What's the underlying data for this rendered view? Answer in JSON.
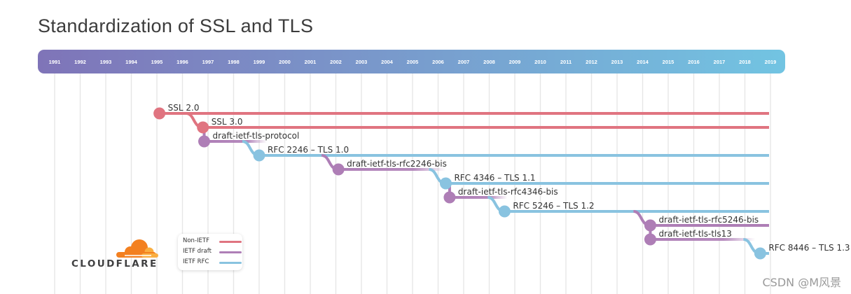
{
  "chart_data": {
    "type": "timeline",
    "title": "Standardization of SSL and TLS",
    "years": [
      1991,
      1992,
      1993,
      1994,
      1995,
      1996,
      1997,
      1998,
      1999,
      2000,
      2001,
      2002,
      2003,
      2004,
      2005,
      2006,
      2007,
      2008,
      2009,
      2010,
      2011,
      2012,
      2013,
      2014,
      2015,
      2016,
      2017,
      2018,
      2019
    ],
    "events": [
      {
        "label": "SSL 2.0",
        "category": "Non-IETF",
        "start": 1995.1,
        "persists": true
      },
      {
        "label": "SSL 3.0",
        "category": "Non-IETF",
        "start": 1996.8,
        "persists": true
      },
      {
        "label": "draft-ietf-tls-protocol",
        "category": "IETF draft",
        "start": 1996.85,
        "persists": false,
        "end": 1999.3
      },
      {
        "label": "RFC 2246 – TLS 1.0",
        "category": "IETF RFC",
        "start": 1999.0,
        "persists": true
      },
      {
        "label": "draft-ietf-tls-rfc2246-bis",
        "category": "IETF draft",
        "start": 2002.1,
        "persists": false,
        "end": 2006.3
      },
      {
        "label": "RFC 4346 – TLS 1.1",
        "category": "IETF RFC",
        "start": 2006.3,
        "persists": true
      },
      {
        "label": "draft-ietf-tls-rfc4346-bis",
        "category": "IETF draft",
        "start": 2006.45,
        "persists": false,
        "end": 2008.7
      },
      {
        "label": "RFC 5246 – TLS 1.2",
        "category": "IETF RFC",
        "start": 2008.6,
        "persists": true
      },
      {
        "label": "draft-ietf-tls-rfc5246-bis",
        "category": "IETF draft",
        "start": 2014.3,
        "persists": true
      },
      {
        "label": "draft-ietf-tls-tls13",
        "category": "IETF draft",
        "start": 2014.3,
        "persists": false,
        "end": 2018.4
      },
      {
        "label": "RFC 8446 – TLS 1.3",
        "category": "IETF RFC",
        "start": 2018.6,
        "persists": true
      }
    ],
    "legend": [
      {
        "label": "Non-IETF",
        "color": "#e07480"
      },
      {
        "label": "IETF draft",
        "color": "#ae7eb6"
      },
      {
        "label": "IETF RFC",
        "color": "#89c3e0"
      }
    ]
  },
  "colors": {
    "header_start": "#7f74b8",
    "header_end": "#72c4e2",
    "grid": "#e6e6e6"
  },
  "logo": {
    "text": "CLOUDFLARE",
    "icon": "cloud-icon"
  },
  "watermark": "CSDN @M风景"
}
